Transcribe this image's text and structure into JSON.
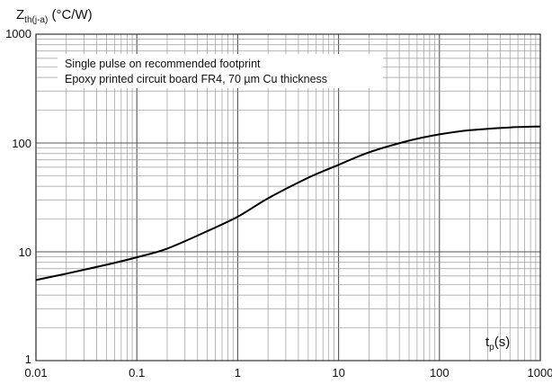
{
  "chart_data": {
    "type": "line",
    "x_scale": "log",
    "y_scale": "log",
    "xlim": [
      0.01,
      1000
    ],
    "ylim": [
      1,
      1000
    ],
    "x_ticks": [
      "0.01",
      "0.1",
      "1",
      "10",
      "100",
      "1000"
    ],
    "y_ticks": [
      "1",
      "10",
      "100",
      "1000"
    ],
    "ylabel_main": "Z",
    "ylabel_sub": "th(j-a)",
    "ylabel_unit": " (°C/W)",
    "xlabel_main": "t",
    "xlabel_sub": "p",
    "xlabel_unit": "(s)",
    "grid": true,
    "annotation_lines": [
      "Single pulse on recommended footprint",
      "Epoxy printed circuit board FR4, 70 µm Cu thickness"
    ],
    "series": [
      {
        "color": "#000000",
        "x": [
          0.01,
          0.02,
          0.05,
          0.1,
          0.2,
          0.5,
          1,
          2,
          5,
          10,
          20,
          50,
          100,
          200,
          500,
          1000
        ],
        "y": [
          5.5,
          6.3,
          7.6,
          8.9,
          10.7,
          15.5,
          21,
          31,
          48,
          63,
          82,
          105,
          120,
          131,
          139,
          142
        ]
      }
    ]
  }
}
